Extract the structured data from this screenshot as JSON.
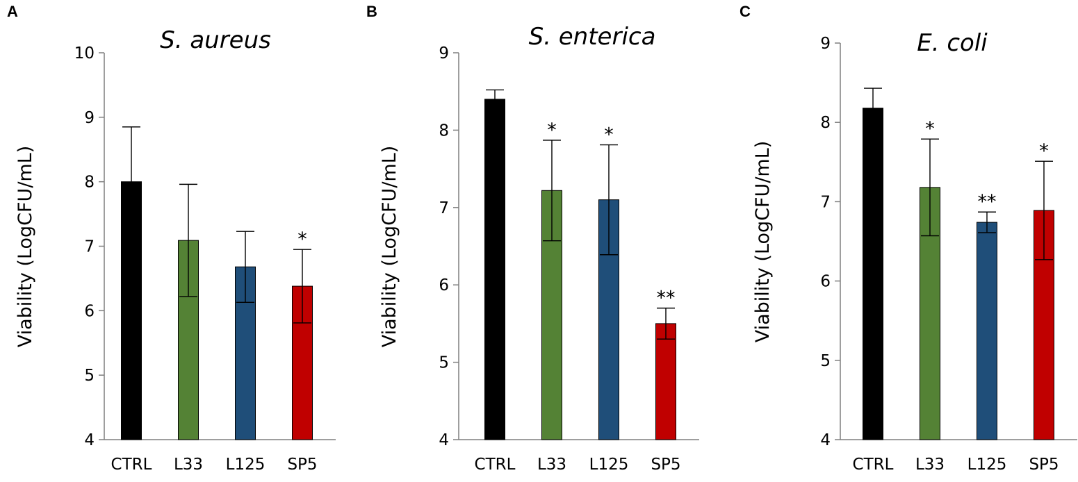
{
  "chart_data": [
    {
      "type": "bar",
      "panel": "A",
      "title": "S. aureus",
      "ylabel": "Viability (LogCFU/mL)",
      "xlabel": "",
      "ylim": [
        4,
        10
      ],
      "yticks": [
        4,
        5,
        6,
        7,
        8,
        9,
        10
      ],
      "categories": [
        "CTRL",
        "L33",
        "L125",
        "SP5"
      ],
      "values": [
        8.0,
        7.09,
        6.68,
        6.38
      ],
      "errors": [
        0.85,
        0.87,
        0.55,
        0.57
      ],
      "significance": [
        "",
        "",
        "",
        "*"
      ],
      "colors": [
        "#000000",
        "#548235",
        "#1f4e79",
        "#c00000"
      ]
    },
    {
      "type": "bar",
      "panel": "B",
      "title": "S. enterica",
      "ylabel": "Viability (LogCFU/mL)",
      "xlabel": "",
      "ylim": [
        4,
        9
      ],
      "yticks": [
        4,
        5,
        6,
        7,
        8,
        9
      ],
      "categories": [
        "CTRL",
        "L33",
        "L125",
        "SP5"
      ],
      "values": [
        8.4,
        7.22,
        7.1,
        5.5
      ],
      "errors": [
        0.12,
        0.65,
        0.71,
        0.2
      ],
      "significance": [
        "",
        "*",
        "*",
        "**"
      ],
      "colors": [
        "#000000",
        "#548235",
        "#1f4e79",
        "#c00000"
      ]
    },
    {
      "type": "bar",
      "panel": "C",
      "title": "E. coli",
      "ylabel": "Viability (LogCFU/mL)",
      "xlabel": "",
      "ylim": [
        4,
        9
      ],
      "yticks": [
        4,
        5,
        6,
        7,
        8,
        9
      ],
      "categories": [
        "CTRL",
        "L33",
        "L125",
        "SP5"
      ],
      "values": [
        8.18,
        7.18,
        6.74,
        6.89
      ],
      "errors": [
        0.25,
        0.61,
        0.13,
        0.62
      ],
      "significance": [
        "",
        "*",
        "**",
        "*"
      ],
      "colors": [
        "#000000",
        "#548235",
        "#1f4e79",
        "#c00000"
      ]
    }
  ]
}
